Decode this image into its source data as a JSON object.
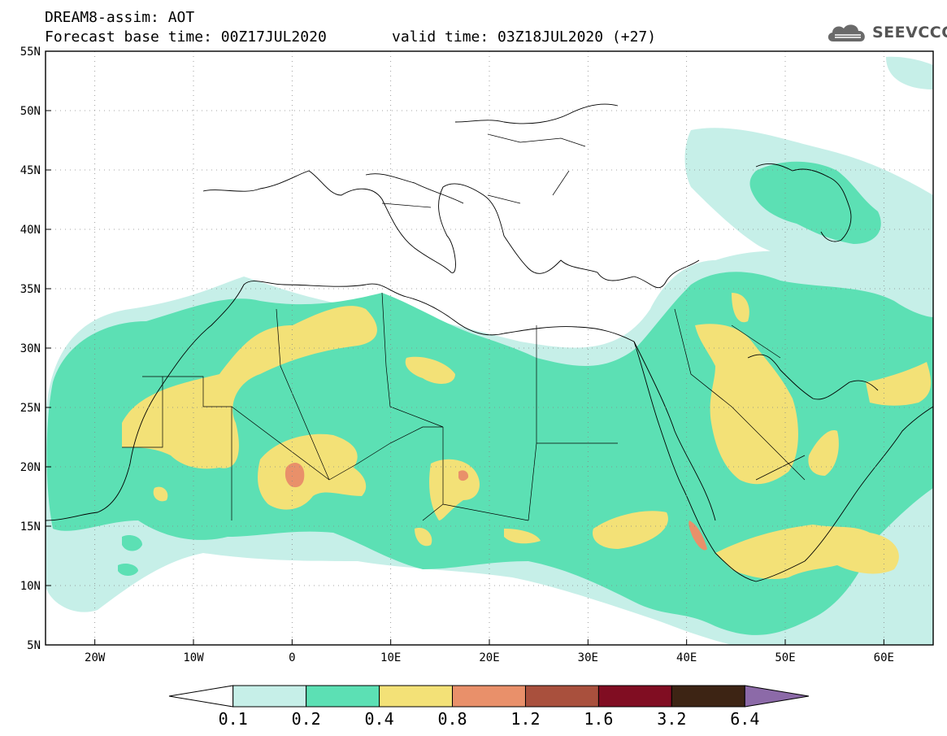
{
  "header": {
    "line1": "DREAM8-assim: AOT",
    "line2_left": "Forecast base time: 00Z17JUL2020",
    "line2_right": "valid time: 03Z18JUL2020 (+27)"
  },
  "logo": {
    "text": "SEEVCCC",
    "icon": "cloud-icon"
  },
  "map": {
    "variable": "AOT",
    "lon_range": [
      -25,
      65
    ],
    "lat_range": [
      5,
      55
    ],
    "x_ticks": [
      {
        "lon": -20,
        "label": "20W"
      },
      {
        "lon": -10,
        "label": "10W"
      },
      {
        "lon": 0,
        "label": "0"
      },
      {
        "lon": 10,
        "label": "10E"
      },
      {
        "lon": 20,
        "label": "20E"
      },
      {
        "lon": 30,
        "label": "30E"
      },
      {
        "lon": 40,
        "label": "40E"
      },
      {
        "lon": 50,
        "label": "50E"
      },
      {
        "lon": 60,
        "label": "60E"
      }
    ],
    "y_ticks": [
      {
        "lat": 5,
        "label": "5N"
      },
      {
        "lat": 10,
        "label": "10N"
      },
      {
        "lat": 15,
        "label": "15N"
      },
      {
        "lat": 20,
        "label": "20N"
      },
      {
        "lat": 25,
        "label": "25N"
      },
      {
        "lat": 30,
        "label": "30N"
      },
      {
        "lat": 35,
        "label": "35N"
      },
      {
        "lat": 40,
        "label": "40N"
      },
      {
        "lat": 45,
        "label": "45N"
      },
      {
        "lat": 50,
        "label": "50N"
      },
      {
        "lat": 55,
        "label": "55N"
      }
    ],
    "grid": "dotted"
  },
  "colorbar": {
    "levels": [
      "0.1",
      "0.2",
      "0.4",
      "0.8",
      "1.2",
      "1.6",
      "3.2",
      "6.4"
    ],
    "colors": [
      "#ffffff",
      "#c6efe8",
      "#5ce0b4",
      "#f3e177",
      "#e9906a",
      "#a9503d",
      "#800d22",
      "#3d2414",
      "#8c6aa8"
    ]
  }
}
